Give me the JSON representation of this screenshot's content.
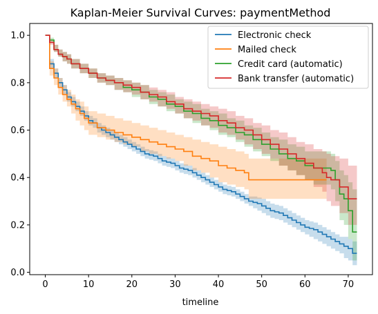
{
  "chart_data": {
    "type": "line",
    "title": "Kaplan-Meier Survival Curves: paymentMethod",
    "xlabel": "timeline",
    "ylabel": "",
    "xlim": [
      -3.6,
      75.6
    ],
    "ylim": [
      -0.01,
      1.05
    ],
    "xticks": [
      0,
      10,
      20,
      30,
      40,
      50,
      60,
      70
    ],
    "yticks": [
      0.0,
      0.2,
      0.4,
      0.6,
      0.8,
      1.0
    ],
    "grid": false,
    "legend_position": "top-right",
    "series": [
      {
        "name": "Electronic check",
        "color": "#1f77b4",
        "x": [
          0,
          1,
          2,
          3,
          4,
          5,
          6,
          7,
          8,
          9,
          10,
          11,
          12,
          13,
          14,
          15,
          16,
          17,
          18,
          19,
          20,
          21,
          22,
          23,
          24,
          25,
          26,
          27,
          28,
          29,
          30,
          31,
          32,
          33,
          34,
          35,
          36,
          37,
          38,
          39,
          40,
          41,
          42,
          43,
          44,
          45,
          46,
          47,
          48,
          49,
          50,
          51,
          52,
          53,
          54,
          55,
          56,
          57,
          58,
          59,
          60,
          61,
          62,
          63,
          64,
          65,
          66,
          67,
          68,
          69,
          70,
          71,
          72
        ],
        "y": [
          1.0,
          0.88,
          0.84,
          0.8,
          0.77,
          0.74,
          0.72,
          0.7,
          0.68,
          0.66,
          0.64,
          0.63,
          0.61,
          0.6,
          0.59,
          0.58,
          0.57,
          0.56,
          0.55,
          0.54,
          0.53,
          0.52,
          0.51,
          0.5,
          0.495,
          0.49,
          0.48,
          0.47,
          0.465,
          0.46,
          0.45,
          0.44,
          0.435,
          0.43,
          0.42,
          0.41,
          0.4,
          0.39,
          0.38,
          0.37,
          0.36,
          0.35,
          0.345,
          0.34,
          0.33,
          0.32,
          0.31,
          0.3,
          0.295,
          0.29,
          0.28,
          0.27,
          0.26,
          0.255,
          0.25,
          0.24,
          0.23,
          0.22,
          0.21,
          0.2,
          0.19,
          0.185,
          0.18,
          0.17,
          0.16,
          0.15,
          0.14,
          0.13,
          0.12,
          0.11,
          0.1,
          0.08,
          0.08
        ],
        "ci_lower": [
          1.0,
          0.86,
          0.82,
          0.78,
          0.75,
          0.72,
          0.7,
          0.68,
          0.66,
          0.64,
          0.62,
          0.61,
          0.59,
          0.58,
          0.57,
          0.56,
          0.55,
          0.54,
          0.53,
          0.52,
          0.51,
          0.5,
          0.49,
          0.48,
          0.475,
          0.47,
          0.46,
          0.45,
          0.445,
          0.44,
          0.43,
          0.42,
          0.415,
          0.41,
          0.4,
          0.39,
          0.38,
          0.37,
          0.36,
          0.35,
          0.34,
          0.33,
          0.325,
          0.32,
          0.31,
          0.3,
          0.29,
          0.28,
          0.27,
          0.26,
          0.25,
          0.24,
          0.23,
          0.225,
          0.22,
          0.21,
          0.2,
          0.19,
          0.18,
          0.17,
          0.16,
          0.15,
          0.14,
          0.13,
          0.12,
          0.11,
          0.1,
          0.09,
          0.08,
          0.06,
          0.05,
          0.03,
          0.03
        ],
        "ci_upper": [
          1.0,
          0.9,
          0.86,
          0.82,
          0.79,
          0.76,
          0.74,
          0.72,
          0.7,
          0.68,
          0.66,
          0.65,
          0.63,
          0.62,
          0.61,
          0.6,
          0.59,
          0.58,
          0.57,
          0.56,
          0.55,
          0.54,
          0.53,
          0.52,
          0.515,
          0.51,
          0.5,
          0.49,
          0.485,
          0.48,
          0.47,
          0.46,
          0.455,
          0.45,
          0.44,
          0.43,
          0.42,
          0.41,
          0.4,
          0.39,
          0.38,
          0.37,
          0.365,
          0.36,
          0.35,
          0.34,
          0.33,
          0.32,
          0.32,
          0.315,
          0.31,
          0.3,
          0.29,
          0.285,
          0.28,
          0.27,
          0.26,
          0.25,
          0.24,
          0.23,
          0.22,
          0.215,
          0.21,
          0.2,
          0.19,
          0.18,
          0.17,
          0.16,
          0.15,
          0.15,
          0.14,
          0.13,
          0.13
        ]
      },
      {
        "name": "Mailed check",
        "color": "#ff7f0e",
        "x": [
          0,
          1,
          2,
          3,
          4,
          5,
          6,
          7,
          8,
          9,
          10,
          12,
          14,
          16,
          18,
          20,
          22,
          24,
          26,
          28,
          30,
          32,
          34,
          36,
          38,
          40,
          42,
          44,
          46,
          47,
          50,
          53,
          56,
          58,
          60,
          62,
          64,
          65
        ],
        "y": [
          1.0,
          0.86,
          0.82,
          0.78,
          0.75,
          0.73,
          0.71,
          0.69,
          0.67,
          0.65,
          0.63,
          0.61,
          0.6,
          0.59,
          0.58,
          0.57,
          0.56,
          0.55,
          0.54,
          0.53,
          0.52,
          0.51,
          0.49,
          0.48,
          0.47,
          0.45,
          0.44,
          0.43,
          0.42,
          0.39,
          0.39,
          0.39,
          0.39,
          0.39,
          0.39,
          0.39,
          0.39,
          0.39
        ],
        "ci_lower": [
          1.0,
          0.83,
          0.79,
          0.75,
          0.72,
          0.7,
          0.67,
          0.64,
          0.62,
          0.6,
          0.58,
          0.57,
          0.56,
          0.55,
          0.54,
          0.53,
          0.51,
          0.5,
          0.49,
          0.48,
          0.47,
          0.45,
          0.43,
          0.42,
          0.4,
          0.38,
          0.37,
          0.36,
          0.35,
          0.31,
          0.31,
          0.31,
          0.31,
          0.31,
          0.31,
          0.31,
          0.31,
          0.31
        ],
        "ci_upper": [
          1.0,
          0.89,
          0.86,
          0.82,
          0.79,
          0.77,
          0.75,
          0.73,
          0.72,
          0.7,
          0.68,
          0.67,
          0.66,
          0.65,
          0.64,
          0.63,
          0.62,
          0.61,
          0.6,
          0.59,
          0.58,
          0.57,
          0.56,
          0.55,
          0.54,
          0.53,
          0.52,
          0.51,
          0.5,
          0.48,
          0.48,
          0.48,
          0.48,
          0.48,
          0.48,
          0.48,
          0.48,
          0.48
        ]
      },
      {
        "name": "Credit card (automatic)",
        "color": "#2ca02c",
        "x": [
          0,
          1,
          2,
          3,
          4,
          5,
          6,
          8,
          10,
          12,
          14,
          16,
          18,
          20,
          22,
          24,
          26,
          28,
          30,
          32,
          34,
          36,
          38,
          40,
          42,
          44,
          46,
          48,
          50,
          52,
          54,
          56,
          58,
          60,
          62,
          64,
          66,
          67,
          68,
          69,
          70,
          71,
          72
        ],
        "y": [
          1.0,
          0.98,
          0.94,
          0.92,
          0.91,
          0.9,
          0.88,
          0.86,
          0.84,
          0.82,
          0.81,
          0.8,
          0.78,
          0.77,
          0.76,
          0.74,
          0.73,
          0.71,
          0.7,
          0.68,
          0.67,
          0.65,
          0.64,
          0.62,
          0.61,
          0.59,
          0.58,
          0.56,
          0.54,
          0.52,
          0.5,
          0.48,
          0.47,
          0.45,
          0.44,
          0.44,
          0.43,
          0.39,
          0.33,
          0.31,
          0.26,
          0.17,
          0.17
        ],
        "ci_lower": [
          1.0,
          0.97,
          0.93,
          0.91,
          0.89,
          0.88,
          0.86,
          0.84,
          0.82,
          0.8,
          0.79,
          0.77,
          0.76,
          0.74,
          0.73,
          0.71,
          0.7,
          0.68,
          0.67,
          0.65,
          0.63,
          0.62,
          0.6,
          0.58,
          0.57,
          0.55,
          0.53,
          0.51,
          0.49,
          0.47,
          0.45,
          0.43,
          0.41,
          0.39,
          0.37,
          0.37,
          0.35,
          0.3,
          0.22,
          0.2,
          0.14,
          0.05,
          0.05
        ],
        "ci_upper": [
          1.0,
          0.99,
          0.96,
          0.94,
          0.93,
          0.92,
          0.9,
          0.88,
          0.86,
          0.84,
          0.83,
          0.82,
          0.81,
          0.8,
          0.79,
          0.77,
          0.76,
          0.75,
          0.73,
          0.72,
          0.71,
          0.69,
          0.68,
          0.67,
          0.65,
          0.64,
          0.62,
          0.61,
          0.59,
          0.57,
          0.56,
          0.54,
          0.53,
          0.51,
          0.51,
          0.51,
          0.5,
          0.47,
          0.43,
          0.41,
          0.38,
          0.35,
          0.35
        ]
      },
      {
        "name": "Bank transfer (automatic)",
        "color": "#d62728",
        "x": [
          0,
          1,
          2,
          3,
          4,
          5,
          6,
          8,
          10,
          12,
          14,
          16,
          18,
          20,
          22,
          24,
          26,
          28,
          30,
          32,
          34,
          36,
          38,
          40,
          42,
          44,
          46,
          48,
          50,
          52,
          54,
          56,
          58,
          60,
          62,
          64,
          65,
          66,
          68,
          70,
          72
        ],
        "y": [
          1.0,
          0.97,
          0.94,
          0.92,
          0.91,
          0.9,
          0.88,
          0.86,
          0.84,
          0.82,
          0.81,
          0.8,
          0.79,
          0.78,
          0.76,
          0.75,
          0.74,
          0.72,
          0.71,
          0.69,
          0.68,
          0.67,
          0.66,
          0.64,
          0.63,
          0.61,
          0.6,
          0.58,
          0.56,
          0.54,
          0.52,
          0.5,
          0.48,
          0.46,
          0.44,
          0.42,
          0.4,
          0.39,
          0.36,
          0.31,
          0.31
        ],
        "ci_lower": [
          1.0,
          0.96,
          0.93,
          0.91,
          0.89,
          0.88,
          0.86,
          0.84,
          0.82,
          0.8,
          0.79,
          0.77,
          0.76,
          0.75,
          0.73,
          0.72,
          0.7,
          0.69,
          0.67,
          0.65,
          0.64,
          0.62,
          0.61,
          0.59,
          0.58,
          0.56,
          0.54,
          0.52,
          0.5,
          0.48,
          0.45,
          0.43,
          0.41,
          0.39,
          0.36,
          0.34,
          0.3,
          0.28,
          0.25,
          0.2,
          0.2
        ],
        "ci_upper": [
          1.0,
          0.98,
          0.96,
          0.94,
          0.93,
          0.92,
          0.9,
          0.88,
          0.86,
          0.84,
          0.83,
          0.82,
          0.81,
          0.8,
          0.79,
          0.78,
          0.77,
          0.76,
          0.74,
          0.73,
          0.72,
          0.71,
          0.7,
          0.69,
          0.68,
          0.66,
          0.65,
          0.63,
          0.62,
          0.6,
          0.59,
          0.57,
          0.55,
          0.54,
          0.52,
          0.51,
          0.5,
          0.49,
          0.48,
          0.45,
          0.45
        ]
      }
    ]
  }
}
